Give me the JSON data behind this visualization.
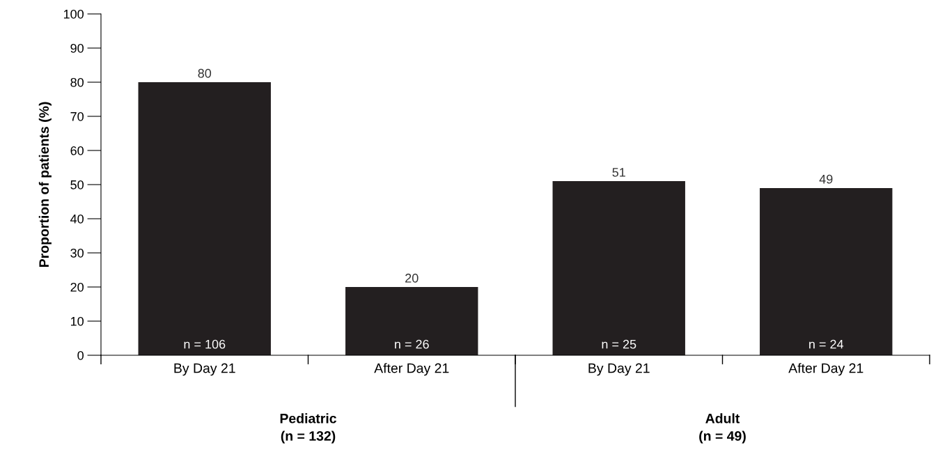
{
  "chart_data": {
    "type": "bar",
    "ylabel": "Proportion of patients (%)",
    "categories": [
      "By Day 21",
      "After Day 21",
      "By Day 21",
      "After Day 21"
    ],
    "values": [
      80,
      20,
      51,
      49
    ],
    "color": "#231f20",
    "data_labels": true,
    "ylim": [
      0,
      100
    ],
    "yticks": [
      0,
      10,
      20,
      30,
      40,
      50,
      60,
      70,
      80,
      90,
      100
    ],
    "grid": false,
    "annotations": [
      "n = 106",
      "n = 26",
      "n = 25",
      "n = 24",
      "Pediatric\n(n = 132)",
      "Adult\n(n = 49)"
    ]
  }
}
